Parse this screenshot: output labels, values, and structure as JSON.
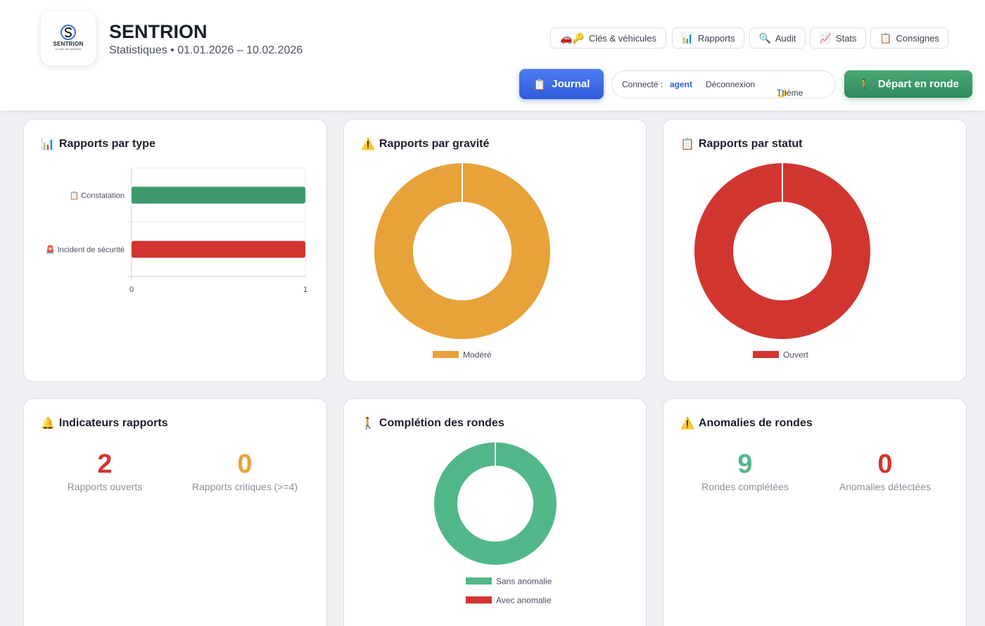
{
  "app": {
    "logo_name": "SENTRION",
    "logo_tagline": "Le cœur des opérations",
    "title": "SENTRION",
    "subtitle": "Statistiques • 01.01.2026 – 10.02.2026"
  },
  "nav": [
    {
      "icon": "🚗🔑",
      "label": "Clés & véhicules"
    },
    {
      "icon": "📊",
      "label": "Rapports"
    },
    {
      "icon": "🔍",
      "label": "Audit"
    },
    {
      "icon": "📈",
      "label": "Stats"
    },
    {
      "icon": "📋",
      "label": "Consignes"
    }
  ],
  "actions": {
    "journal_icon": "📋",
    "journal_label": "Journal",
    "connected_label": "Connecté :",
    "connected_user": "agent",
    "logout_label": "Déconnexion",
    "theme_icon": "🌙",
    "theme_label": "Thème",
    "depart_icon": "🚶",
    "depart_label": "Départ en ronde"
  },
  "cards": {
    "type": {
      "icon": "📊",
      "title": "Rapports par type"
    },
    "gravity": {
      "icon": "⚠️",
      "title": "Rapports par gravité"
    },
    "status": {
      "icon": "📋",
      "title": "Rapports par statut"
    },
    "indicators": {
      "icon": "🔔",
      "title": "Indicateurs rapports"
    },
    "completion": {
      "icon": "🚶",
      "title": "Complétion des rondes"
    },
    "anomalies": {
      "icon": "⚠️",
      "title": "Anomalies de rondes"
    }
  },
  "kpis": {
    "indicators": [
      {
        "value": "2",
        "label": "Rapports ouverts",
        "color": "#d0362f"
      },
      {
        "value": "0",
        "label": "Rapports critiques (>=4)",
        "color": "#e8a23a"
      }
    ],
    "anomalies": [
      {
        "value": "9",
        "label": "Rondes complétées",
        "color": "#52b788"
      },
      {
        "value": "0",
        "label": "Anomalies détectées",
        "color": "#d0362f"
      }
    ]
  },
  "chart_data": [
    {
      "type": "bar",
      "orientation": "horizontal",
      "categories": [
        "📋 Constatation",
        "🚨 Incident de sécurité"
      ],
      "values": [
        1,
        1
      ],
      "colors": [
        "#3f9a6b",
        "#d0362f"
      ],
      "xlim": [
        0,
        1
      ],
      "xticks": [
        "0",
        "1"
      ],
      "grid": true
    },
    {
      "type": "pie",
      "donut": true,
      "labels": [
        "Modéré"
      ],
      "values": [
        1
      ],
      "colors": [
        "#e8a23a"
      ],
      "legend": "bottom"
    },
    {
      "type": "pie",
      "donut": true,
      "labels": [
        "Ouvert"
      ],
      "values": [
        1
      ],
      "colors": [
        "#d0362f"
      ],
      "legend": "bottom"
    },
    {
      "type": "pie",
      "donut": true,
      "labels": [
        "Sans anomalie",
        "Avec anomalie"
      ],
      "values": [
        9,
        0
      ],
      "colors": [
        "#52b788",
        "#d0362f"
      ],
      "legend": "bottom"
    }
  ]
}
